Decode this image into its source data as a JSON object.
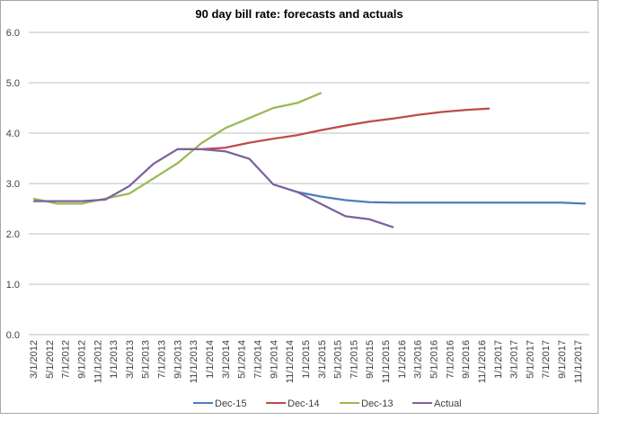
{
  "chart_data": {
    "type": "line",
    "title": "90 day bill rate: forecasts and actuals",
    "xlabel": "",
    "ylabel": "",
    "ylim": [
      0,
      6
    ],
    "yticks": [
      "0.0",
      "1.0",
      "2.0",
      "3.0",
      "4.0",
      "5.0",
      "6.0"
    ],
    "grid": true,
    "legend": "bottom",
    "xtick_labels": [
      "3/1/2012",
      "5/1/2012",
      "7/1/2012",
      "9/1/2012",
      "11/1/2012",
      "1/1/2013",
      "3/1/2013",
      "5/1/2013",
      "7/1/2013",
      "9/1/2013",
      "11/1/2013",
      "1/1/2014",
      "3/1/2014",
      "5/1/2014",
      "7/1/2014",
      "9/1/2014",
      "11/1/2014",
      "1/1/2015",
      "3/1/2015",
      "5/1/2015",
      "7/1/2015",
      "9/1/2015",
      "11/1/2015",
      "1/1/2016",
      "3/1/2016",
      "5/1/2016",
      "7/1/2016",
      "9/1/2016",
      "11/1/2016",
      "1/1/2017",
      "3/1/2017",
      "5/1/2017",
      "7/1/2017",
      "9/1/2017",
      "11/1/2017"
    ],
    "x": [
      "3/1/2012",
      "6/1/2012",
      "9/1/2012",
      "12/1/2012",
      "3/1/2013",
      "6/1/2013",
      "9/1/2013",
      "12/1/2013",
      "3/1/2014",
      "6/1/2014",
      "9/1/2014",
      "12/1/2014",
      "3/1/2015",
      "6/1/2015",
      "9/1/2015",
      "12/1/2015",
      "3/1/2016",
      "6/1/2016",
      "9/1/2016",
      "12/1/2016",
      "3/1/2017",
      "6/1/2017",
      "9/1/2017",
      "12/1/2017"
    ],
    "series": [
      {
        "name": "Dec-15",
        "color": "#4a7ebb",
        "values": [
          null,
          null,
          null,
          null,
          null,
          null,
          null,
          null,
          null,
          null,
          null,
          2.83,
          2.74,
          2.67,
          2.63,
          2.62,
          2.62,
          2.62,
          2.62,
          2.62,
          2.62,
          2.62,
          2.62,
          2.6
        ]
      },
      {
        "name": "Dec-14",
        "color": "#be4b48",
        "values": [
          null,
          null,
          null,
          null,
          null,
          null,
          3.68,
          3.68,
          3.71,
          3.81,
          3.89,
          3.96,
          4.06,
          4.15,
          4.23,
          4.29,
          4.36,
          4.42,
          4.46,
          4.49,
          null,
          null,
          null,
          null
        ]
      },
      {
        "name": "Dec-13",
        "color": "#98b954",
        "values": [
          2.7,
          2.6,
          2.6,
          2.7,
          2.8,
          3.1,
          3.4,
          3.8,
          4.1,
          4.3,
          4.5,
          4.6,
          4.8,
          null,
          null,
          null,
          null,
          null,
          null,
          null,
          null,
          null,
          null,
          null
        ]
      },
      {
        "name": "Actual",
        "color": "#7d60a0",
        "values": [
          2.65,
          2.65,
          2.65,
          2.68,
          2.95,
          3.39,
          3.68,
          3.68,
          3.64,
          3.49,
          2.98,
          2.83,
          2.59,
          2.35,
          2.29,
          2.13,
          null,
          null,
          null,
          null,
          null,
          null,
          null,
          null
        ]
      }
    ]
  }
}
